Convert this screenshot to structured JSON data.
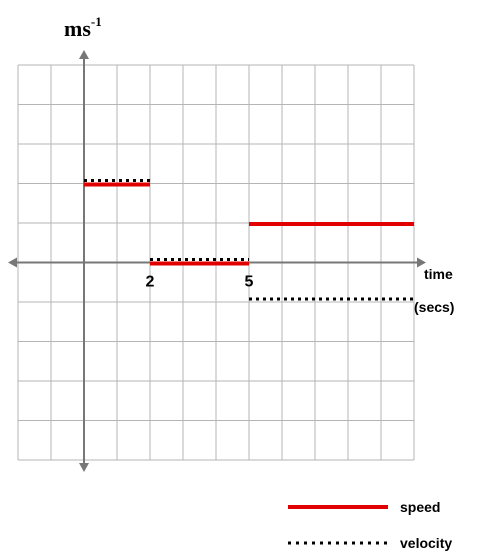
{
  "chart_data": {
    "type": "line",
    "ylabel": "ms",
    "ylabel_superscript": "-1",
    "xlabel_line1": "time",
    "xlabel_line2": "(secs)",
    "xticks": [
      {
        "value": 2,
        "label": "2"
      },
      {
        "value": 5,
        "label": "5"
      }
    ],
    "xlim": [
      -2,
      10
    ],
    "ylim": [
      -5,
      5
    ],
    "grid": true,
    "legend_position": "bottom-right",
    "series": [
      {
        "name": "speed",
        "color": "#e00000",
        "style": "solid",
        "segments": [
          {
            "x": [
              0,
              2
            ],
            "y": [
              2,
              2
            ]
          },
          {
            "x": [
              2,
              5
            ],
            "y": [
              0,
              0
            ]
          },
          {
            "x": [
              5,
              10
            ],
            "y": [
              1,
              1
            ]
          }
        ]
      },
      {
        "name": "velocity",
        "color": "#000000",
        "style": "dotted",
        "segments": [
          {
            "x": [
              0,
              2
            ],
            "y": [
              2,
              2
            ]
          },
          {
            "x": [
              2,
              5
            ],
            "y": [
              0,
              0
            ]
          },
          {
            "x": [
              5,
              10
            ],
            "y": [
              -1,
              -1
            ]
          }
        ]
      }
    ]
  }
}
